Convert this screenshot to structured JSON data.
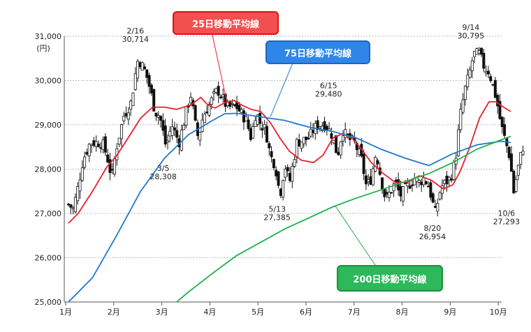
{
  "colors": {
    "ma25": "#e8202a",
    "ma75": "#1f78d0",
    "ma200": "#20b04b",
    "candle_up": "#ffffff",
    "candle_down": "#111111",
    "wick": "#111111"
  },
  "legend": {
    "ma25": {
      "label": "25日移動平均線",
      "bg": "#f25050",
      "border": "#e01010"
    },
    "ma75": {
      "label": "75日移動平均線",
      "bg": "#2f86e8",
      "border": "#1a66c0"
    },
    "ma200": {
      "label": "200日移動平均線",
      "bg": "#2db85a",
      "border": "#1a9040"
    }
  },
  "chart_data": {
    "type": "candlestick",
    "yunit": "(円)",
    "ylim": [
      25000,
      31000
    ],
    "yticks": [
      25000,
      26000,
      27000,
      28000,
      29000,
      30000,
      31000
    ],
    "ytick_labels": [
      "25,000",
      "26,000",
      "27,000",
      "28,000",
      "29,000",
      "30,000",
      "31,000"
    ],
    "xlim": [
      0,
      9.1
    ],
    "xticks": [
      0,
      1,
      2,
      3,
      4,
      5,
      6,
      7,
      8,
      9
    ],
    "xtick_labels": [
      "1月",
      "2月",
      "3月",
      "4月",
      "5月",
      "6月",
      "7月",
      "8月",
      "9月",
      "10月"
    ],
    "annotations": [
      {
        "date": "2/16",
        "value": "30,714",
        "x": 1.45,
        "y": 30714,
        "pos": "above"
      },
      {
        "date": "3/5",
        "value": "28,308",
        "x": 2.03,
        "y": 28308,
        "pos": "below"
      },
      {
        "date": "5/13",
        "value": "27,385",
        "x": 4.4,
        "y": 27385,
        "pos": "below"
      },
      {
        "date": "6/15",
        "value": "29,480",
        "x": 5.47,
        "y": 29480,
        "pos": "above"
      },
      {
        "date": "8/20",
        "value": "26,954",
        "x": 7.63,
        "y": 26954,
        "pos": "below"
      },
      {
        "date": "9/14",
        "value": "30,795",
        "x": 8.43,
        "y": 30795,
        "pos": "above"
      },
      {
        "date": "10/6",
        "value": "27,293",
        "x": 9.17,
        "y": 27293,
        "pos": "below"
      }
    ],
    "close_anchors": [
      [
        0.0,
        27200
      ],
      [
        0.1,
        27100
      ],
      [
        0.2,
        27600
      ],
      [
        0.3,
        28200
      ],
      [
        0.45,
        28600
      ],
      [
        0.7,
        28600
      ],
      [
        0.8,
        28300
      ],
      [
        0.9,
        27800
      ],
      [
        1.0,
        28500
      ],
      [
        1.15,
        29200
      ],
      [
        1.3,
        29500
      ],
      [
        1.4,
        30200
      ],
      [
        1.45,
        30500
      ],
      [
        1.6,
        30200
      ],
      [
        1.7,
        29800
      ],
      [
        1.8,
        29300
      ],
      [
        1.9,
        29200
      ],
      [
        2.03,
        28500
      ],
      [
        2.15,
        29000
      ],
      [
        2.3,
        28600
      ],
      [
        2.45,
        29300
      ],
      [
        2.55,
        29700
      ],
      [
        2.62,
        29100
      ],
      [
        2.7,
        28700
      ],
      [
        2.8,
        29200
      ],
      [
        3.0,
        29600
      ],
      [
        3.1,
        29800
      ],
      [
        3.3,
        29400
      ],
      [
        3.5,
        29400
      ],
      [
        3.7,
        29100
      ],
      [
        3.8,
        28700
      ],
      [
        3.9,
        29300
      ],
      [
        4.0,
        29000
      ],
      [
        4.1,
        28900
      ],
      [
        4.2,
        28300
      ],
      [
        4.3,
        28100
      ],
      [
        4.4,
        27400
      ],
      [
        4.5,
        28100
      ],
      [
        4.6,
        27700
      ],
      [
        4.75,
        28600
      ],
      [
        5.0,
        28700
      ],
      [
        5.1,
        28900
      ],
      [
        5.2,
        29000
      ],
      [
        5.35,
        29000
      ],
      [
        5.47,
        28800
      ],
      [
        5.6,
        28300
      ],
      [
        5.7,
        28900
      ],
      [
        5.8,
        28700
      ],
      [
        5.95,
        28600
      ],
      [
        6.1,
        28200
      ],
      [
        6.2,
        27600
      ],
      [
        6.3,
        27800
      ],
      [
        6.4,
        28400
      ],
      [
        6.5,
        27800
      ],
      [
        6.6,
        27300
      ],
      [
        6.7,
        27500
      ],
      [
        6.8,
        27700
      ],
      [
        6.9,
        27400
      ],
      [
        7.05,
        27600
      ],
      [
        7.2,
        27800
      ],
      [
        7.3,
        27700
      ],
      [
        7.4,
        27800
      ],
      [
        7.5,
        27600
      ],
      [
        7.63,
        27000
      ],
      [
        7.75,
        27600
      ],
      [
        7.85,
        27700
      ],
      [
        7.95,
        27800
      ],
      [
        8.05,
        28200
      ],
      [
        8.15,
        29200
      ],
      [
        8.25,
        29800
      ],
      [
        8.35,
        30200
      ],
      [
        8.43,
        30600
      ],
      [
        8.55,
        30600
      ],
      [
        8.65,
        30300
      ],
      [
        8.75,
        30200
      ],
      [
        8.9,
        29600
      ],
      [
        9.0,
        29000
      ],
      [
        9.1,
        28600
      ],
      [
        9.2,
        28200
      ],
      [
        9.25,
        27400
      ],
      [
        9.35,
        28000
      ],
      [
        9.45,
        28500
      ],
      [
        9.5,
        28500
      ]
    ],
    "series": [
      {
        "key": "ma25",
        "points": [
          [
            0.0,
            26780
          ],
          [
            0.2,
            27000
          ],
          [
            0.5,
            27500
          ],
          [
            0.8,
            28050
          ],
          [
            1.0,
            28300
          ],
          [
            1.25,
            28720
          ],
          [
            1.5,
            29150
          ],
          [
            1.75,
            29400
          ],
          [
            2.0,
            29400
          ],
          [
            2.25,
            29350
          ],
          [
            2.55,
            29450
          ],
          [
            2.75,
            29620
          ],
          [
            2.9,
            29450
          ],
          [
            3.05,
            29380
          ],
          [
            3.25,
            29500
          ],
          [
            3.45,
            29550
          ],
          [
            3.6,
            29450
          ],
          [
            3.8,
            29350
          ],
          [
            4.0,
            29300
          ],
          [
            4.2,
            29050
          ],
          [
            4.4,
            28700
          ],
          [
            4.6,
            28400
          ],
          [
            4.85,
            28200
          ],
          [
            5.1,
            28150
          ],
          [
            5.3,
            28320
          ],
          [
            5.5,
            28700
          ],
          [
            5.7,
            28800
          ],
          [
            5.9,
            28700
          ],
          [
            6.1,
            28450
          ],
          [
            6.3,
            28150
          ],
          [
            6.55,
            27900
          ],
          [
            6.8,
            27700
          ],
          [
            7.05,
            27700
          ],
          [
            7.3,
            27850
          ],
          [
            7.55,
            27750
          ],
          [
            7.8,
            27550
          ],
          [
            8.0,
            27650
          ],
          [
            8.15,
            27950
          ],
          [
            8.35,
            28500
          ],
          [
            8.55,
            29150
          ],
          [
            8.75,
            29520
          ],
          [
            8.9,
            29520
          ],
          [
            9.05,
            29400
          ],
          [
            9.2,
            29300
          ]
        ]
      },
      {
        "key": "ma75",
        "points": [
          [
            0.0,
            25000
          ],
          [
            0.5,
            25550
          ],
          [
            1.0,
            26500
          ],
          [
            1.5,
            27500
          ],
          [
            2.0,
            28250
          ],
          [
            2.5,
            28780
          ],
          [
            3.0,
            29100
          ],
          [
            3.25,
            29250
          ],
          [
            3.5,
            29260
          ],
          [
            3.75,
            29220
          ],
          [
            4.0,
            29180
          ],
          [
            4.5,
            29100
          ],
          [
            5.0,
            28950
          ],
          [
            5.5,
            28850
          ],
          [
            6.0,
            28700
          ],
          [
            6.5,
            28450
          ],
          [
            7.0,
            28250
          ],
          [
            7.5,
            28080
          ],
          [
            8.0,
            28350
          ],
          [
            8.5,
            28550
          ],
          [
            9.0,
            28630
          ],
          [
            9.2,
            28600
          ]
        ]
      },
      {
        "key": "ma200",
        "points": [
          [
            2.25,
            25000
          ],
          [
            2.5,
            25230
          ],
          [
            3.0,
            25650
          ],
          [
            3.5,
            26050
          ],
          [
            4.0,
            26350
          ],
          [
            4.5,
            26650
          ],
          [
            5.0,
            26900
          ],
          [
            5.5,
            27150
          ],
          [
            6.0,
            27350
          ],
          [
            6.5,
            27530
          ],
          [
            7.0,
            27720
          ],
          [
            7.5,
            27900
          ],
          [
            8.0,
            28150
          ],
          [
            8.5,
            28450
          ],
          [
            9.0,
            28660
          ],
          [
            9.2,
            28740
          ]
        ]
      }
    ]
  }
}
